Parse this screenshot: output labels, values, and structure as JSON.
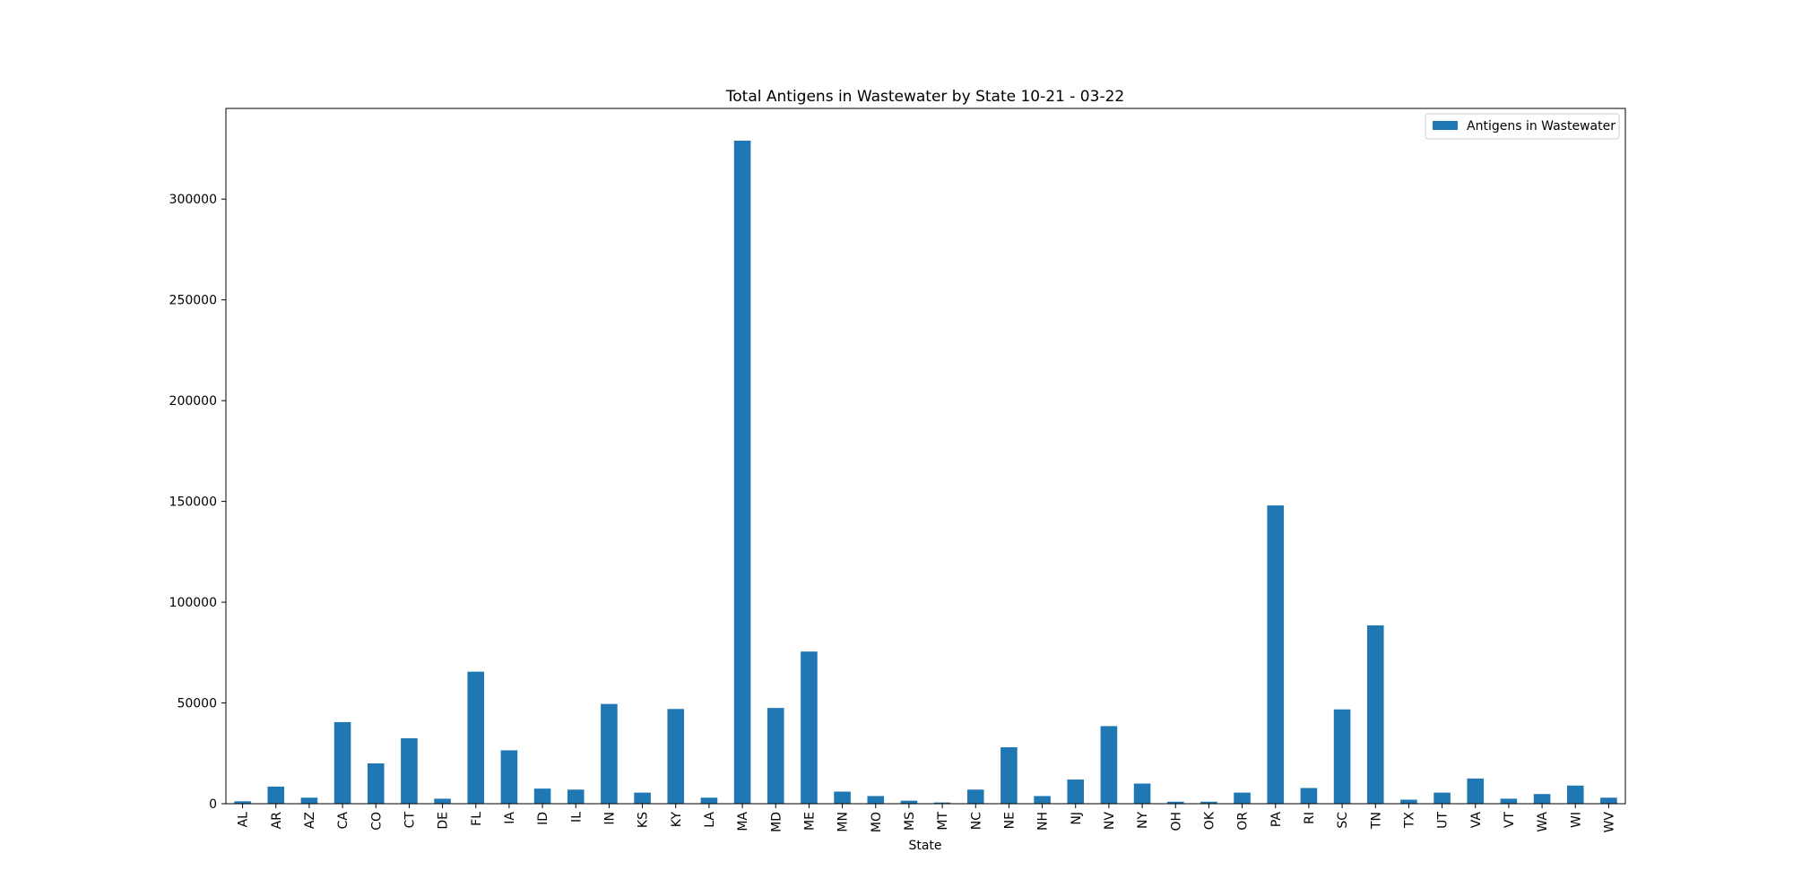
{
  "chart_data": {
    "type": "bar",
    "title": "Total Antigens in Wastewater by State 10-21 - 03-22",
    "xlabel": "State",
    "ylabel": "",
    "categories": [
      "AL",
      "AR",
      "AZ",
      "CA",
      "CO",
      "CT",
      "DE",
      "FL",
      "IA",
      "ID",
      "IL",
      "IN",
      "KS",
      "KY",
      "LA",
      "MA",
      "MD",
      "ME",
      "MN",
      "MO",
      "MS",
      "MT",
      "NC",
      "NE",
      "NH",
      "NJ",
      "NV",
      "NY",
      "OH",
      "OK",
      "OR",
      "PA",
      "RI",
      "SC",
      "TN",
      "TX",
      "UT",
      "VA",
      "VT",
      "WA",
      "WI",
      "WV"
    ],
    "series": [
      {
        "name": "Antigens in Wastewater",
        "values": [
          1200,
          8500,
          3000,
          40500,
          20000,
          32500,
          2500,
          65500,
          26500,
          7500,
          7000,
          49500,
          5500,
          47000,
          3000,
          329000,
          47500,
          75500,
          6000,
          3800,
          1500,
          600,
          7000,
          28000,
          3800,
          12000,
          38500,
          10000,
          1000,
          1000,
          5500,
          148000,
          7800,
          46800,
          88500,
          2000,
          5500,
          12500,
          2500,
          4800,
          9000,
          3000
        ]
      }
    ],
    "ylim": [
      0,
      345000
    ],
    "yticks": [
      0,
      50000,
      100000,
      150000,
      200000,
      250000,
      300000
    ],
    "ytick_labels": [
      "0",
      "50000",
      "100000",
      "150000",
      "200000",
      "250000",
      "300000"
    ],
    "grid": false,
    "legend_position": "top-right",
    "colors": {
      "bar": "#1f77b4"
    }
  }
}
